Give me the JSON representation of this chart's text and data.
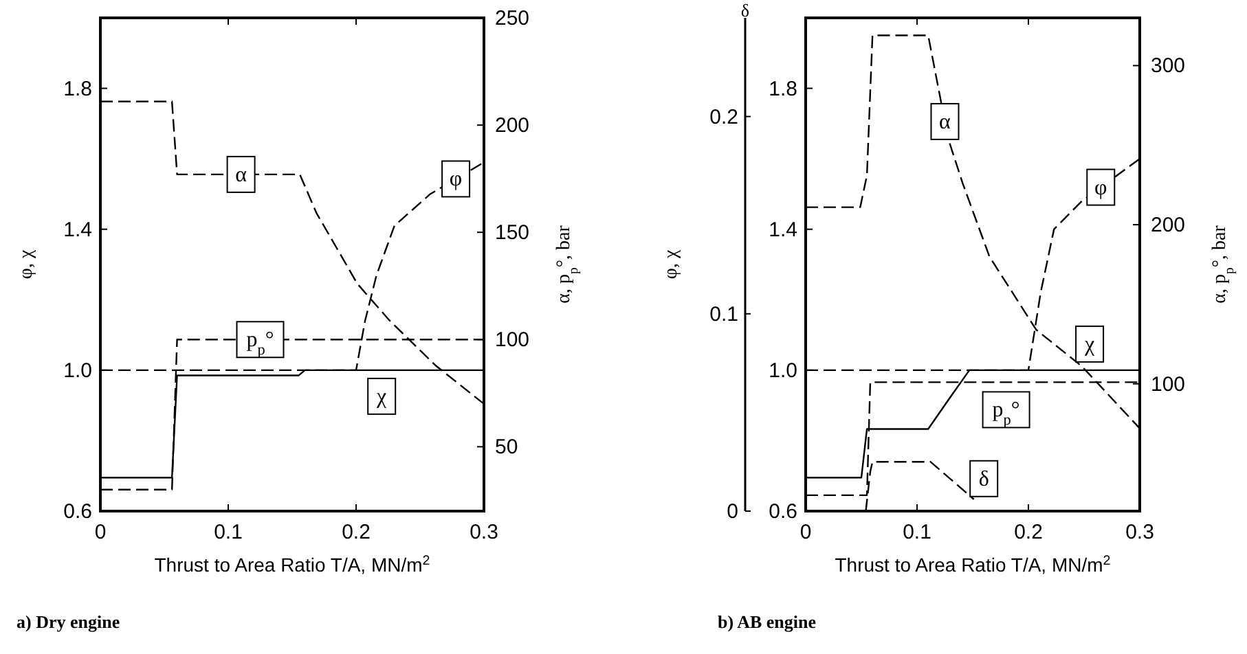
{
  "chart_data": [
    {
      "type": "line",
      "title": "a) Dry engine",
      "xlabel": "Thrust to Area Ratio T/A, MN/m$^{2}$",
      "ylabel": "φ, χ",
      "y2label": "α, p$_{p}$°, bar",
      "xlim": [
        0,
        0.3
      ],
      "xticks": [
        0,
        0.1,
        0.2,
        0.3
      ],
      "ylim": [
        0.6,
        2.0
      ],
      "yticks": [
        0.6,
        {
          "value": 1,
          "label": "1.0"
        },
        1.4,
        1.8
      ],
      "y2lim": [
        20,
        250
      ],
      "y2ticks": [
        50,
        100,
        150,
        200,
        250
      ],
      "series": [
        {
          "name": "α",
          "color": "#000000",
          "axis": "y2",
          "line_style": "dashed",
          "x": [
            0,
            0.056,
            0.06,
            0.156,
            0.169,
            0.201,
            0.226,
            0.262,
            0.3
          ],
          "values": [
            211,
            211,
            177,
            177,
            159,
            126,
            109,
            88,
            70
          ]
        },
        {
          "name": "φ",
          "color": "#000000",
          "axis": "y",
          "line_style": "dashed",
          "x": [
            0,
            0.2,
            0.207,
            0.216,
            0.23,
            0.258,
            0.3
          ],
          "values": [
            1.0,
            1.0,
            1.14,
            1.27,
            1.41,
            1.5,
            1.59
          ]
        },
        {
          "name": "χ",
          "color": "#000000",
          "axis": "y",
          "line_style": "solid",
          "x": [
            0,
            0.056,
            0.06,
            0.155,
            0.16,
            0.3
          ],
          "values": [
            0.695,
            0.695,
            0.985,
            0.985,
            1.0,
            1.0
          ]
        },
        {
          "name": "p$_{p}$°",
          "color": "#000000",
          "axis": "y2",
          "line_style": "dashed",
          "x": [
            0,
            0.056,
            0.06,
            0.3
          ],
          "values": [
            30,
            30,
            100,
            100
          ]
        }
      ]
    },
    {
      "type": "line",
      "title": "b) AB engine",
      "xlabel": "Thrust to Area Ratio T/A, MN/m$^{2}$",
      "ylabel": "φ, χ",
      "y2label": "α, p$_{p}$°, bar",
      "y3label": "δ",
      "xlim": [
        0,
        0.3
      ],
      "xticks": [
        0,
        0.1,
        0.2,
        0.3
      ],
      "ylim": [
        0.6,
        2.0
      ],
      "yticks": [
        0.6,
        {
          "value": 1,
          "label": "1.0"
        },
        1.4,
        1.8
      ],
      "y2lim": [
        20,
        330
      ],
      "y2ticks": [
        100,
        200,
        300
      ],
      "y3lim": [
        0,
        0.25
      ],
      "y3ticks": [
        0,
        0.1,
        0.2
      ],
      "series": [
        {
          "name": "α",
          "color": "#000000",
          "axis": "y2",
          "line_style": "dashed",
          "x": [
            0,
            0.049,
            0.055,
            0.06,
            0.11,
            0.128,
            0.141,
            0.165,
            0.207,
            0.248,
            0.3
          ],
          "values": [
            211,
            211,
            231,
            319,
            319,
            254,
            226,
            180,
            134,
            111,
            72
          ]
        },
        {
          "name": "φ",
          "color": "#000000",
          "axis": "y",
          "line_style": "dashed",
          "x": [
            0,
            0.2,
            0.211,
            0.223,
            0.248,
            0.3
          ],
          "values": [
            1.0,
            1.0,
            1.22,
            1.4,
            1.48,
            1.6
          ]
        },
        {
          "name": "χ",
          "color": "#000000",
          "axis": "y",
          "line_style": "solid",
          "x": [
            0,
            0.05,
            0.055,
            0.11,
            0.128,
            0.147,
            0.3
          ],
          "values": [
            0.695,
            0.695,
            0.833,
            0.833,
            0.915,
            1.0,
            1.0
          ]
        },
        {
          "name": "p$_{p}$°",
          "color": "#000000",
          "axis": "y2",
          "line_style": "dashed",
          "x": [
            0,
            0.055,
            0.058,
            0.3
          ],
          "values": [
            30,
            30,
            101,
            101
          ]
        },
        {
          "name": "δ",
          "color": "#000000",
          "axis": "y3",
          "line_style": "dashed",
          "x": [
            0.054,
            0.058,
            0.06,
            0.112,
            0.151
          ],
          "values": [
            0,
            0.02,
            0.025,
            0.025,
            0.006
          ]
        }
      ]
    }
  ]
}
